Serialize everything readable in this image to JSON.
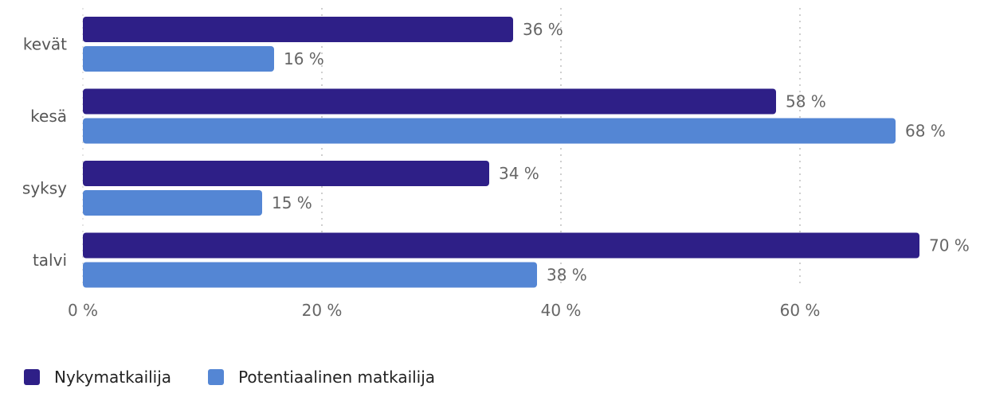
{
  "chart_data": {
    "type": "bar",
    "orientation": "horizontal",
    "categories": [
      "kevät",
      "kesä",
      "syksy",
      "talvi"
    ],
    "series": [
      {
        "name": "Nykymatkailija",
        "values": [
          36,
          58,
          34,
          70
        ],
        "color": "#2e1f87"
      },
      {
        "name": "Potentiaalinen matkailija",
        "values": [
          16,
          68,
          15,
          38
        ],
        "color": "#5486d4"
      }
    ],
    "value_labels": [
      [
        "36 %",
        "58 %",
        "34 %",
        "70 %"
      ],
      [
        "16 %",
        "68 %",
        "15 %",
        "38 %"
      ]
    ],
    "xlim": [
      0,
      75
    ],
    "x_ticks": [
      0,
      20,
      40,
      60
    ],
    "x_tick_labels": [
      "0 %",
      "20 %",
      "40 %",
      "60 %"
    ],
    "grid": "vertical dotted",
    "legend_position": "bottom-left"
  }
}
